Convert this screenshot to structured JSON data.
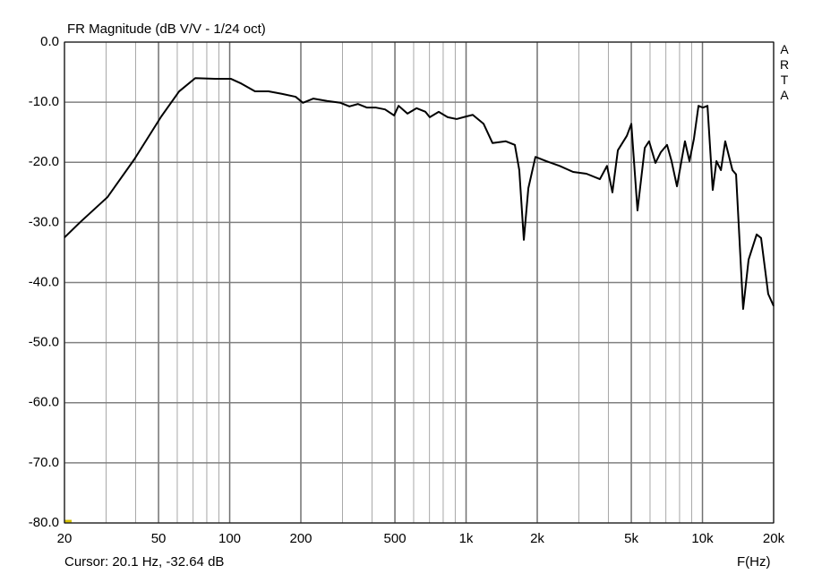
{
  "chart_data": {
    "type": "line",
    "title": "FR Magnitude (dB V/V - 1/24 oct)",
    "x_label": "F(Hz)",
    "side_label": "ARTA",
    "cursor_text": "Cursor: 20.1 Hz, -32.64 dB",
    "log_x": true,
    "grid": true,
    "xlim": [
      20,
      20000
    ],
    "ylim": [
      -80,
      0
    ],
    "xticks": [
      20,
      50,
      100,
      200,
      500,
      {
        "value": 1000,
        "label": "1k"
      },
      {
        "value": 2000,
        "label": "2k"
      },
      {
        "value": 5000,
        "label": "5k"
      },
      {
        "value": 10000,
        "label": "10k"
      },
      {
        "value": 20000,
        "label": "20k"
      }
    ],
    "x_minor_ticks": [
      30,
      40,
      60,
      70,
      80,
      90,
      300,
      400,
      600,
      700,
      800,
      900,
      3000,
      4000,
      6000,
      7000,
      8000,
      9000
    ],
    "yticks": [
      {
        "value": 0,
        "label": "0.0"
      },
      {
        "value": -10,
        "label": "-10.0"
      },
      {
        "value": -20,
        "label": "-20.0"
      },
      {
        "value": -30,
        "label": "-30.0"
      },
      {
        "value": -40,
        "label": "-40.0"
      },
      {
        "value": -50,
        "label": "-50.0"
      },
      {
        "value": -60,
        "label": "-60.0"
      },
      {
        "value": -70,
        "label": "-70.0"
      },
      {
        "value": -80,
        "label": "-80.0"
      }
    ],
    "x": [
      20,
      23.4,
      30.4,
      39.5,
      51.3,
      61.1,
      71.5,
      86.6,
      101,
      112,
      128,
      146,
      166,
      190,
      204,
      226,
      258,
      294,
      321,
      349,
      381,
      416,
      454,
      496,
      518,
      565,
      617,
      673,
      702,
      766,
      836,
      912,
      995,
      1067,
      1186,
      1294,
      1473,
      1608,
      1679,
      1755,
      1834,
      1965,
      2183,
      2489,
      2837,
      3229,
      3682,
      3946,
      4159,
      4386,
      4787,
      5001,
      5310,
      5700,
      5945,
      6325,
      6670,
      7080,
      7400,
      7800,
      8430,
      8810,
      9200,
      9620,
      10040,
      10500,
      11050,
      11460,
      11970,
      12480,
      13390,
      13870,
      14860,
      15670,
      16950,
      17700,
      18970,
      20000
    ],
    "series": [
      {
        "color": "#000000",
        "values": [
          -32.5,
          -29.9,
          -25.8,
          -19.5,
          -12.4,
          -8.2,
          -6.0,
          -6.1,
          -6.1,
          -6.9,
          -8.2,
          -8.2,
          -8.6,
          -9.1,
          -10.1,
          -9.4,
          -9.8,
          -10.1,
          -10.7,
          -10.3,
          -10.9,
          -10.9,
          -11.2,
          -12.2,
          -10.6,
          -11.9,
          -11.0,
          -11.6,
          -12.5,
          -11.6,
          -12.5,
          -12.8,
          -12.4,
          -12.1,
          -13.6,
          -16.8,
          -16.5,
          -17.1,
          -21.3,
          -32.9,
          -24.3,
          -19.1,
          -19.8,
          -20.6,
          -21.6,
          -21.9,
          -22.8,
          -20.6,
          -25.0,
          -18.0,
          -15.6,
          -13.6,
          -28.0,
          -17.6,
          -16.5,
          -20.1,
          -18.3,
          -17.1,
          -19.8,
          -24.0,
          -16.5,
          -19.8,
          -16.1,
          -10.6,
          -10.9,
          -10.6,
          -24.6,
          -19.8,
          -21.3,
          -16.5,
          -21.3,
          -22.0,
          -44.4,
          -36.2,
          -32.0,
          -32.6,
          -41.9,
          -43.9
        ]
      }
    ]
  }
}
